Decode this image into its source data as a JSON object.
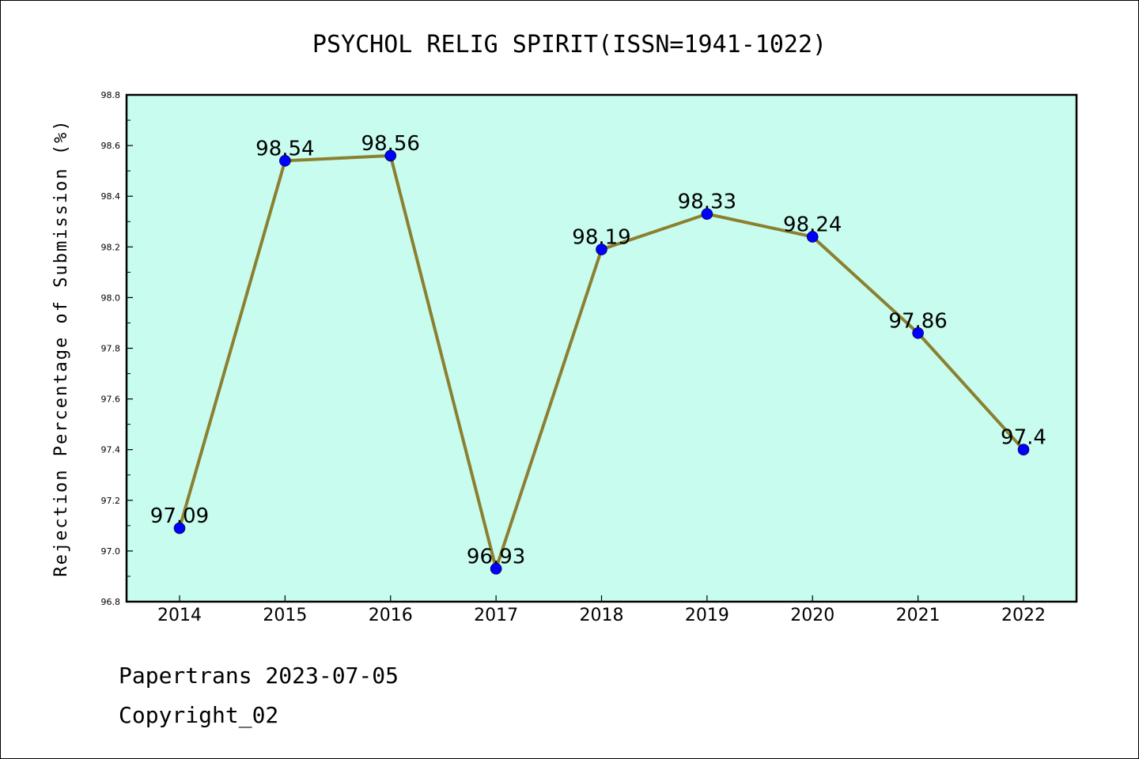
{
  "chart_data": {
    "type": "line",
    "title": "PSYCHOL RELIG SPIRIT(ISSN=1941-1022)",
    "xlabel": "",
    "ylabel": "Rejection Percentage of Submission (%)",
    "categories": [
      "2014",
      "2015",
      "2016",
      "2017",
      "2018",
      "2019",
      "2020",
      "2021",
      "2022"
    ],
    "series": [
      {
        "values": [
          97.09,
          98.54,
          98.56,
          96.93,
          98.19,
          98.33,
          98.24,
          97.86,
          97.4
        ],
        "labels": [
          "97.09",
          "98.54",
          "98.56",
          "96.93",
          "98.19",
          "98.33",
          "98.24",
          "97.86",
          "97.4"
        ],
        "line_color": "#8b8030",
        "marker_color": "#0000ff"
      }
    ],
    "ylim": [
      96.8,
      98.8
    ],
    "yticks": [
      "96.8",
      "97.0",
      "97.2",
      "97.4",
      "97.6",
      "97.8",
      "98.0",
      "98.2",
      "98.4",
      "98.6",
      "98.8"
    ],
    "background_color": "#c8fcee",
    "grid": false
  },
  "footer": {
    "line1": "Papertrans 2023-07-05",
    "line2": "Copyright_02"
  }
}
